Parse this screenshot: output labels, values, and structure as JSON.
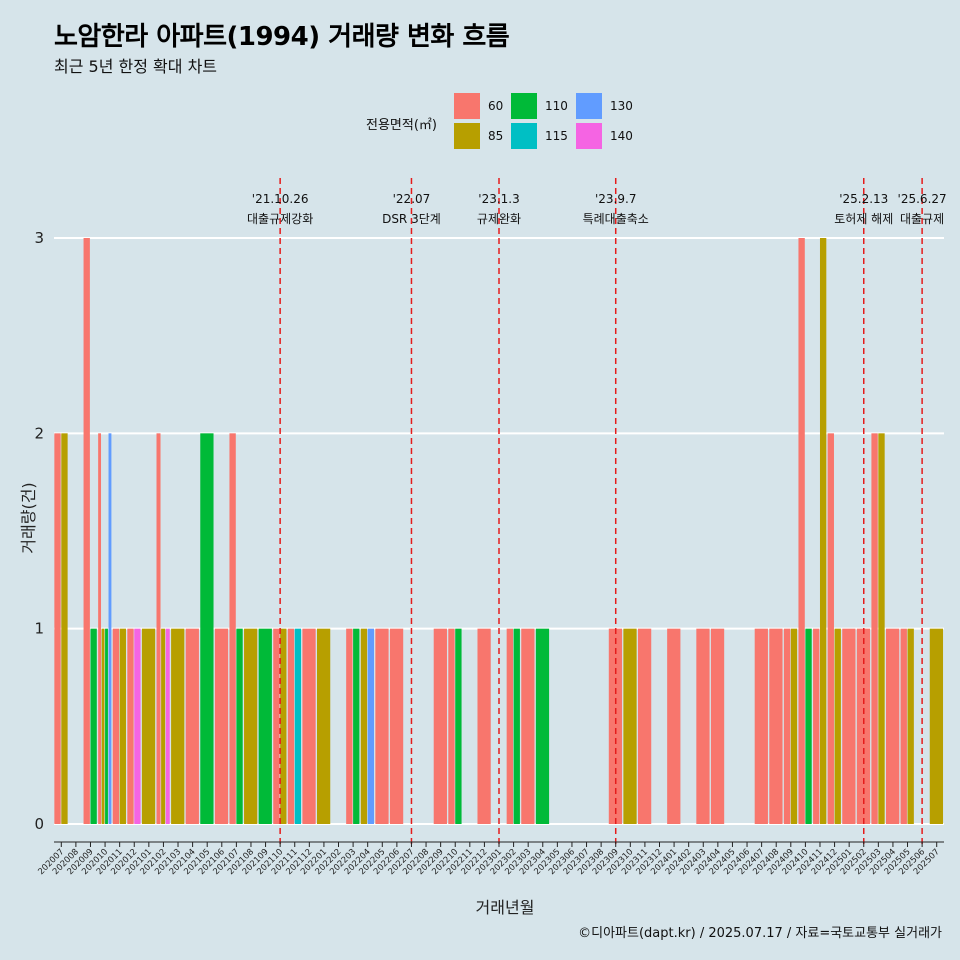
{
  "title": "노암한라 아파트(1994) 거래량 변화 흐름",
  "subtitle": "최근 5년 한정 확대 차트",
  "caption": "©디아파트(dapt.kr) / 2025.07.17 / 자료=국토교통부 실거래가",
  "legend": {
    "title": "전용면적(㎡)",
    "items": [
      {
        "label": "60",
        "color": "#f8766d"
      },
      {
        "label": "85",
        "color": "#b79f00"
      },
      {
        "label": "110",
        "color": "#00ba38"
      },
      {
        "label": "115",
        "color": "#00bfc4"
      },
      {
        "label": "130",
        "color": "#619cff"
      },
      {
        "label": "140",
        "color": "#f564e3"
      }
    ]
  },
  "chart_data": {
    "type": "bar",
    "stacking": "dodge",
    "xlabel": "거래년월",
    "ylabel": "거래량(건)",
    "ylim": [
      0,
      3
    ],
    "yticks": [
      0,
      1,
      2,
      3
    ],
    "grid": true,
    "legend_position": "top",
    "categories": [
      "202007",
      "202008",
      "202009",
      "202010",
      "202011",
      "202012",
      "202101",
      "202102",
      "202103",
      "202104",
      "202105",
      "202106",
      "202107",
      "202108",
      "202109",
      "202110",
      "202111",
      "202112",
      "202201",
      "202202",
      "202203",
      "202204",
      "202205",
      "202206",
      "202207",
      "202208",
      "202209",
      "202210",
      "202211",
      "202212",
      "202301",
      "202302",
      "202303",
      "202304",
      "202305",
      "202306",
      "202307",
      "202308",
      "202309",
      "202310",
      "202311",
      "202312",
      "202401",
      "202402",
      "202403",
      "202404",
      "202405",
      "202406",
      "202407",
      "202408",
      "202409",
      "202410",
      "202411",
      "202412",
      "202501",
      "202502",
      "202503",
      "202504",
      "202505",
      "202506",
      "202507"
    ],
    "bars": [
      {
        "month": "202007",
        "values": {
          "60": 2,
          "85": 2
        }
      },
      {
        "month": "202009",
        "values": {
          "60": 3,
          "110": 1
        }
      },
      {
        "month": "202010",
        "values": {
          "60": 2,
          "85": 1,
          "110": 1,
          "130": 2
        }
      },
      {
        "month": "202011",
        "values": {
          "60": 1,
          "85": 1
        }
      },
      {
        "month": "202012",
        "values": {
          "60": 1,
          "140": 1
        }
      },
      {
        "month": "202101",
        "values": {
          "85": 1
        }
      },
      {
        "month": "202102",
        "values": {
          "60": 2,
          "85": 1,
          "140": 1
        }
      },
      {
        "month": "202103",
        "values": {
          "85": 1
        }
      },
      {
        "month": "202104",
        "values": {
          "60": 1
        }
      },
      {
        "month": "202105",
        "values": {
          "110": 2
        }
      },
      {
        "month": "202106",
        "values": {
          "60": 1
        }
      },
      {
        "month": "202107",
        "values": {
          "60": 2,
          "110": 1
        }
      },
      {
        "month": "202108",
        "values": {
          "85": 1
        }
      },
      {
        "month": "202109",
        "values": {
          "110": 1
        }
      },
      {
        "month": "202110",
        "values": {
          "60": 1,
          "85": 1
        }
      },
      {
        "month": "202111",
        "values": {
          "60": 1,
          "115": 1
        }
      },
      {
        "month": "202112",
        "values": {
          "60": 1
        }
      },
      {
        "month": "202201",
        "values": {
          "85": 1
        }
      },
      {
        "month": "202203",
        "values": {
          "60": 1,
          "110": 1
        }
      },
      {
        "month": "202204",
        "values": {
          "85": 1,
          "130": 1
        }
      },
      {
        "month": "202205",
        "values": {
          "60": 1
        }
      },
      {
        "month": "202206",
        "values": {
          "60": 1
        }
      },
      {
        "month": "202209",
        "values": {
          "60": 1
        }
      },
      {
        "month": "202210",
        "values": {
          "60": 1,
          "110": 1
        }
      },
      {
        "month": "202212",
        "values": {
          "60": 1
        }
      },
      {
        "month": "202302",
        "values": {
          "60": 1,
          "110": 1
        }
      },
      {
        "month": "202303",
        "values": {
          "60": 1
        }
      },
      {
        "month": "202304",
        "values": {
          "110": 1
        }
      },
      {
        "month": "202309",
        "values": {
          "60": 1
        }
      },
      {
        "month": "202310",
        "values": {
          "85": 1
        }
      },
      {
        "month": "202311",
        "values": {
          "60": 1
        }
      },
      {
        "month": "202401",
        "values": {
          "60": 1
        }
      },
      {
        "month": "202403",
        "values": {
          "60": 1
        }
      },
      {
        "month": "202404",
        "values": {
          "60": 1
        }
      },
      {
        "month": "202407",
        "values": {
          "60": 1
        }
      },
      {
        "month": "202408",
        "values": {
          "60": 1
        }
      },
      {
        "month": "202409",
        "values": {
          "60": 1,
          "85": 1
        }
      },
      {
        "month": "202410",
        "values": {
          "60": 3,
          "110": 1
        }
      },
      {
        "month": "202411",
        "values": {
          "60": 1,
          "85": 3
        }
      },
      {
        "month": "202412",
        "values": {
          "60": 2,
          "85": 1
        }
      },
      {
        "month": "202501",
        "values": {
          "60": 1
        }
      },
      {
        "month": "202502",
        "values": {
          "60": 1
        }
      },
      {
        "month": "202503",
        "values": {
          "60": 2,
          "85": 2
        }
      },
      {
        "month": "202504",
        "values": {
          "60": 1
        }
      },
      {
        "month": "202505",
        "values": {
          "60": 1,
          "85": 1
        }
      },
      {
        "month": "202507",
        "values": {
          "85": 1
        }
      }
    ],
    "annotations": [
      {
        "month": "202110",
        "date": "'21.10.26",
        "label": "대출규제강화"
      },
      {
        "month": "202207",
        "date": "'22.07",
        "label": "DSR 3단계"
      },
      {
        "month": "202301",
        "date": "'23.1.3",
        "label": "규제완화"
      },
      {
        "month": "202309",
        "date": "'23.9.7",
        "label": "특례대출축소"
      },
      {
        "month": "202502",
        "date": "'25.2.13",
        "label": "토허제 해제"
      },
      {
        "month": "202506",
        "date": "'25.6.27",
        "label": "대출규제"
      }
    ]
  }
}
